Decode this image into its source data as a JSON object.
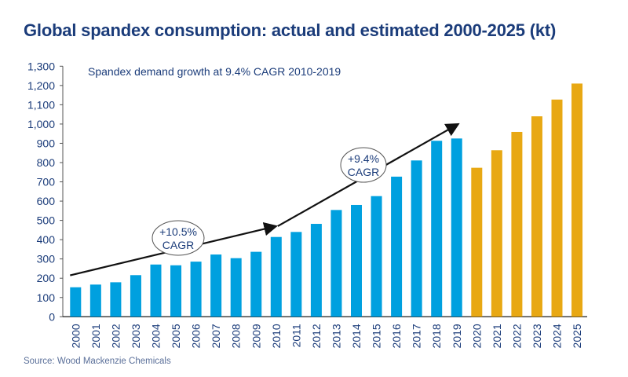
{
  "chart_data": {
    "type": "bar",
    "title": "Global spandex consumption:  actual and estimated 2000-2025  (kt)",
    "subtitle": "Spandex demand growth at 9.4% CAGR 2010-2019",
    "source": "Source: Wood Mackenzie Chemicals",
    "categories": [
      "2000",
      "2001",
      "2002",
      "2003",
      "2004",
      "2005",
      "2006",
      "2007",
      "2008",
      "2009",
      "2010",
      "2011",
      "2012",
      "2013",
      "2014",
      "2015",
      "2016",
      "2017",
      "2018",
      "2019",
      "2020",
      "2021",
      "2022",
      "2023",
      "2024",
      "2025"
    ],
    "values": [
      153,
      167,
      179,
      216,
      271,
      267,
      286,
      323,
      304,
      337,
      414,
      440,
      482,
      554,
      580,
      626,
      727,
      811,
      913,
      925,
      773,
      864,
      959,
      1040,
      1127,
      1210
    ],
    "estimated_from": "2020",
    "colors": {
      "actual": "#00a0df",
      "estimated": "#e8a813",
      "text": "#1b3c7a"
    },
    "ylim": [
      0,
      1300
    ],
    "yticks": [
      "0",
      "100",
      "200",
      "300",
      "400",
      "500",
      "600",
      "700",
      "800",
      "900",
      "1,000",
      "1,100",
      "1,200",
      "1,300"
    ],
    "grid": false,
    "annotations": [
      {
        "label_line1": "+10.5%",
        "label_line2": "CAGR",
        "from_year": "2000",
        "to_year": "2010",
        "from_value": 215,
        "to_value": 470
      },
      {
        "label_line1": "+9.4%",
        "label_line2": "CAGR",
        "from_year": "2010",
        "to_year": "2019",
        "from_value": 470,
        "to_value": 1000
      }
    ]
  }
}
